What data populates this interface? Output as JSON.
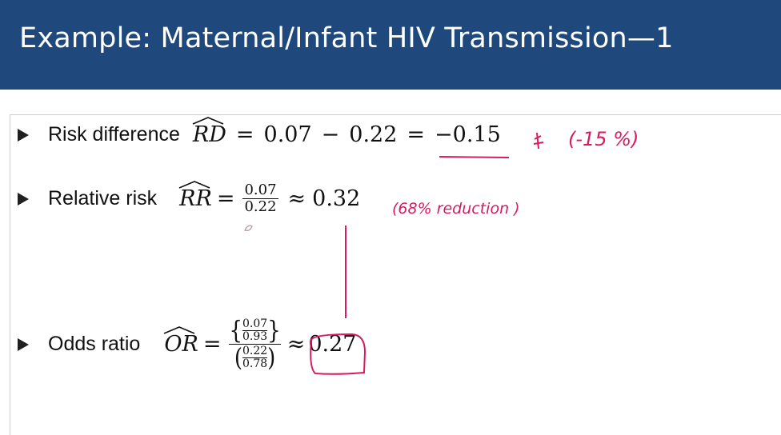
{
  "header": {
    "title": "Example: Maternal/Infant HIV Transmission—1"
  },
  "bullets": [
    {
      "label": "Risk difference",
      "estimator": "RD",
      "expression": [
        "0.07",
        "−",
        "0.22",
        "=",
        "−0.15"
      ]
    },
    {
      "label": "Relative risk",
      "estimator": "RR",
      "numerator": "0.07",
      "denominator": "0.22",
      "approx_result": "0.32"
    },
    {
      "label": "Odds ratio",
      "estimator": "OR",
      "num_top": "0.07",
      "num_bottom": "0.93",
      "den_top": "0.22",
      "den_bottom": "0.78",
      "approx_result": "0.27"
    }
  ],
  "annotations": {
    "rd_note": "(-15 %)",
    "rr_note": "(68% reduction )"
  },
  "colors": {
    "header_bg": "#1f497d",
    "ink": "#d81b60"
  }
}
